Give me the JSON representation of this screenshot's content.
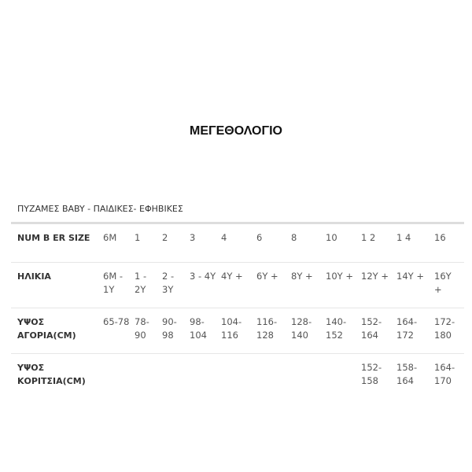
{
  "title": "ΜΕΓΕΘΟΛΟΓΙΟ",
  "subtitle": "ΠΥΖΑΜΕΣ BABY - ΠΑΙΔΙΚΕΣ- ΕΦΗΒΙΚΕΣ",
  "rows": [
    {
      "label": "NUM B ER SIZE",
      "cells": [
        "6M",
        "1",
        "2",
        "3",
        "4",
        "6",
        "8",
        "10",
        "1 2",
        "1 4",
        "16"
      ]
    },
    {
      "label": "ΗΛΙΚΙΑ",
      "cells": [
        "6M - 1Y",
        "1 - 2Y",
        "2 - 3Y",
        "3 - 4Y",
        "4Y +",
        "6Y +",
        "8Y +",
        "10Y +",
        "12Y +",
        "14Y +",
        "16Y +"
      ]
    },
    {
      "label": "ΥΨΟΣ ΑΓΟΡΙΑ(CM)",
      "cells": [
        "65-78",
        "78-90",
        "90-98",
        "98-104",
        "104-116",
        "116-128",
        "128-140",
        "140-152",
        "152-164",
        "164-172",
        "172-180"
      ]
    },
    {
      "label": "ΥΨΟΣ ΚΟΡΙΤΣΙΑ(CM)",
      "cells": [
        "",
        "",
        "",
        "",
        "",
        "",
        "",
        "",
        "152-158",
        "158-164",
        "164-170"
      ]
    }
  ]
}
